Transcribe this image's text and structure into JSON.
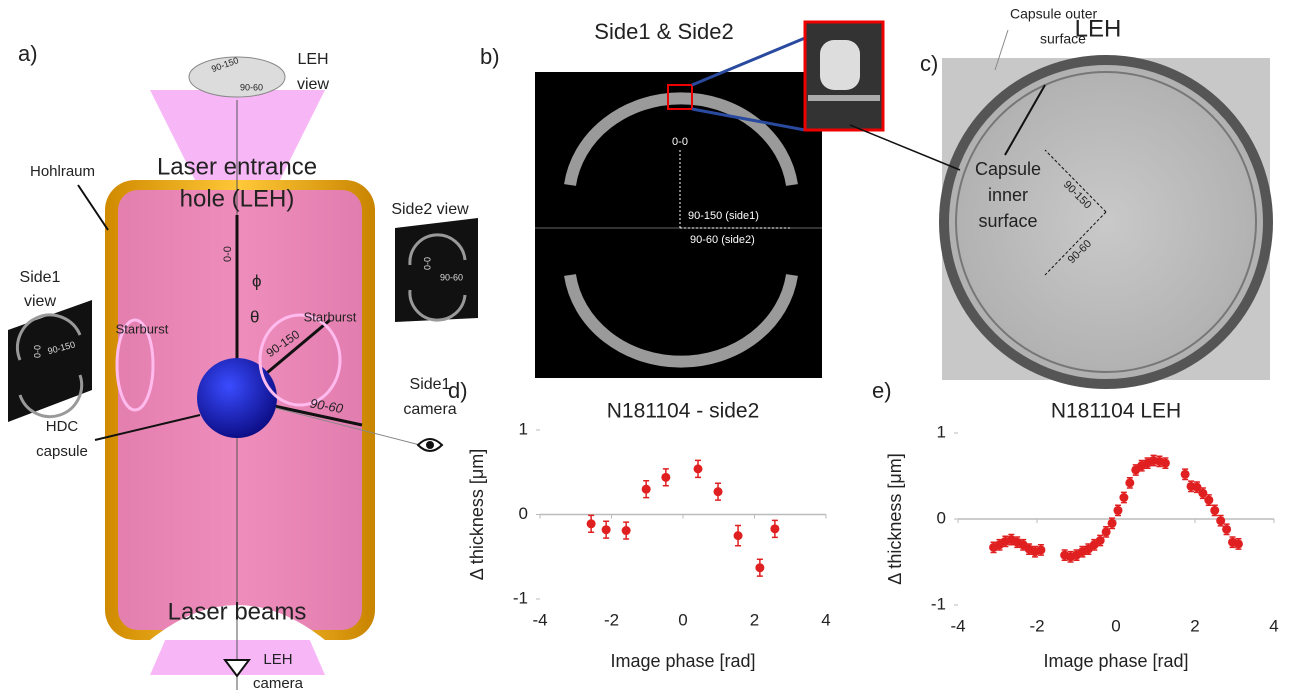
{
  "figure": {
    "panel_a": {
      "label": "a)",
      "leh_view": [
        "LEH",
        "view"
      ],
      "leh_view_90_150": "90-150",
      "leh_view_90_60": "90-60",
      "hohlraum": "Hohlraum",
      "leh_title": [
        "Laser entrance",
        "hole (LEH)"
      ],
      "side2_view": "Side2 view",
      "side2_00": "0-0",
      "side2_90_60": "90-60",
      "side1_view": [
        "Side1",
        "view"
      ],
      "side1_00": "0-0",
      "side1_90_150": "90-150",
      "starburst_left": "Starburst",
      "starburst_right": "Starburst",
      "axis_00": "0-0",
      "phi": "ϕ",
      "theta": "θ",
      "axis_90_150": "90-150",
      "axis_90_60": "90-60",
      "hdc_capsule": [
        "HDC",
        "capsule"
      ],
      "side1_camera": [
        "Side1",
        "camera"
      ],
      "laser_beams": "Laser beams",
      "leh_camera": [
        "LEH",
        "camera"
      ]
    },
    "panel_b": {
      "label": "b)",
      "title": "Side1 & Side2",
      "axis_00": "0-0",
      "axis_side1": "90-150 (side1)",
      "axis_side2": "90-60 (side2)"
    },
    "panel_c": {
      "label": "c)",
      "title": "LEH",
      "outer": [
        "Capsule outer",
        "surface"
      ],
      "inner": [
        "Capsule",
        "inner",
        "surface"
      ],
      "axis_90_150": "90-150",
      "axis_90_60": "90-60"
    }
  },
  "chart_data": [
    {
      "type": "scatter",
      "panel_label": "d)",
      "title": "N181104 - side2",
      "x_label": "Image phase [rad]",
      "y_label": "Δ thickness [μm]",
      "color": "#e02020",
      "x": [
        -2.57,
        -2.15,
        -1.59,
        -1.03,
        -0.48,
        0.42,
        0.98,
        1.54,
        2.15,
        2.57
      ],
      "values": [
        -0.11,
        -0.18,
        -0.19,
        0.3,
        0.44,
        0.54,
        0.27,
        -0.25,
        -0.63,
        -0.17
      ],
      "errors": [
        0.1,
        0.1,
        0.1,
        0.1,
        0.1,
        0.1,
        0.1,
        0.12,
        0.1,
        0.1
      ],
      "xlim": [
        -4,
        4
      ],
      "xticks": [
        -4,
        -2,
        0,
        2,
        4
      ],
      "ylim": [
        -1,
        1
      ],
      "yticks": [
        -1,
        0,
        1
      ]
    },
    {
      "type": "scatter",
      "panel_label": "e)",
      "title": "N181104 LEH",
      "x_label": "Image phase [rad]",
      "y_label": "Δ thickness [μm]",
      "color": "#e02020",
      "x": [
        -3.1,
        -2.95,
        -2.8,
        -2.65,
        -2.5,
        -2.35,
        -2.2,
        -2.05,
        -1.9,
        -1.3,
        -1.15,
        -1.0,
        -0.85,
        -0.7,
        -0.55,
        -0.4,
        -0.25,
        -0.1,
        0.05,
        0.2,
        0.35,
        0.5,
        0.65,
        0.8,
        0.95,
        1.1,
        1.25,
        1.75,
        1.9,
        2.05,
        2.2,
        2.35,
        2.5,
        2.65,
        2.8,
        2.95,
        3.1
      ],
      "values": [
        -0.33,
        -0.3,
        -0.26,
        -0.24,
        -0.27,
        -0.3,
        -0.35,
        -0.38,
        -0.36,
        -0.42,
        -0.44,
        -0.42,
        -0.38,
        -0.35,
        -0.3,
        -0.25,
        -0.15,
        -0.05,
        0.1,
        0.25,
        0.42,
        0.57,
        0.62,
        0.65,
        0.68,
        0.67,
        0.65,
        0.52,
        0.38,
        0.37,
        0.3,
        0.22,
        0.1,
        -0.02,
        -0.12,
        -0.27,
        -0.29
      ],
      "errors": [
        0.06,
        0.06,
        0.06,
        0.06,
        0.06,
        0.06,
        0.06,
        0.06,
        0.06,
        0.06,
        0.06,
        0.06,
        0.06,
        0.06,
        0.06,
        0.06,
        0.06,
        0.06,
        0.06,
        0.06,
        0.06,
        0.06,
        0.06,
        0.06,
        0.06,
        0.06,
        0.06,
        0.06,
        0.06,
        0.06,
        0.06,
        0.06,
        0.06,
        0.06,
        0.06,
        0.06,
        0.06
      ],
      "xlim": [
        -4,
        4
      ],
      "xticks": [
        -4,
        -2,
        0,
        2,
        4
      ],
      "ylim": [
        -1,
        1
      ],
      "yticks": [
        -1,
        0,
        1
      ]
    }
  ]
}
